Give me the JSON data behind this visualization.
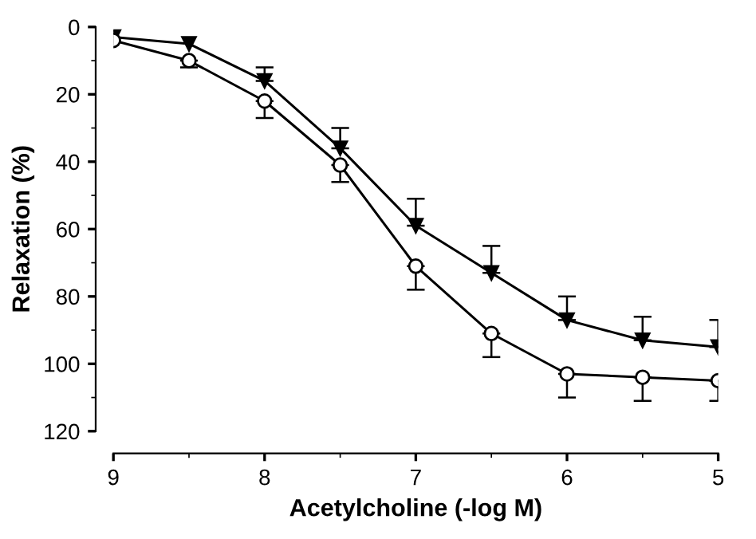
{
  "chart_data": {
    "type": "line",
    "xlabel": "Acetylcholine (-log M)",
    "ylabel": "Relaxation (%)",
    "x": [
      9,
      8.5,
      8,
      7.5,
      7,
      6.5,
      6,
      5.5,
      5
    ],
    "series": [
      {
        "color": "#000000",
        "marker": "triangle",
        "values": [
          3,
          5,
          16,
          36,
          59,
          73,
          87,
          93,
          95
        ],
        "errors": [
          null,
          null,
          [
            12,
            16
          ],
          [
            30,
            36
          ],
          [
            51,
            59
          ],
          [
            65,
            73
          ],
          [
            80,
            87
          ],
          [
            86,
            93
          ],
          [
            87,
            95
          ]
        ]
      },
      {
        "color": "#000000",
        "marker": "circle",
        "values": [
          4,
          10,
          22,
          41,
          71,
          91,
          103,
          104,
          105
        ],
        "errors": [
          null,
          [
            10,
            12
          ],
          [
            22,
            27
          ],
          [
            41,
            46
          ],
          [
            71,
            78
          ],
          [
            91,
            98
          ],
          [
            103,
            110
          ],
          [
            104,
            111
          ],
          [
            105,
            111
          ]
        ]
      }
    ],
    "xlim": [
      9,
      5
    ],
    "xticks": [
      9,
      8,
      7,
      6,
      5
    ],
    "ylim": [
      120,
      0
    ],
    "yticks": [
      0,
      20,
      40,
      60,
      80,
      100,
      120
    ],
    "grid": false,
    "legend": false,
    "line_style": "solid"
  }
}
